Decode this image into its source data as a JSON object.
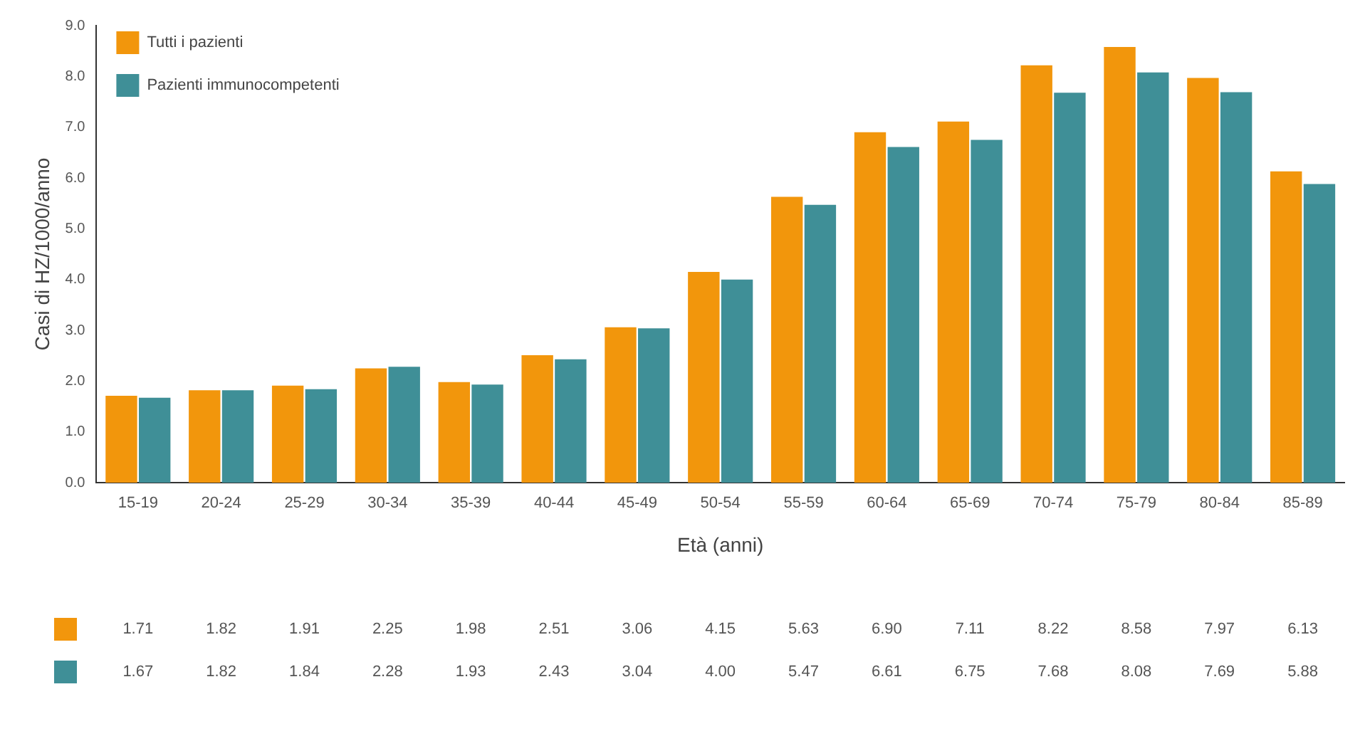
{
  "chart_data": {
    "type": "bar",
    "xlabel": "Età (anni)",
    "ylabel": "Casi di HZ/1000/anno",
    "categories": [
      "15-19",
      "20-24",
      "25-29",
      "30-34",
      "35-39",
      "40-44",
      "45-49",
      "50-54",
      "55-59",
      "60-64",
      "65-69",
      "70-74",
      "75-79",
      "80-84",
      "85-89"
    ],
    "series": [
      {
        "name": "Tutti i pazienti",
        "color": "#f2960c",
        "values": [
          1.71,
          1.82,
          1.91,
          2.25,
          1.98,
          2.51,
          3.06,
          4.15,
          5.63,
          6.9,
          7.11,
          8.22,
          8.58,
          7.97,
          6.13
        ],
        "value_labels": [
          "1.71",
          "1.82",
          "1.91",
          "2.25",
          "1.98",
          "2.51",
          "3.06",
          "4.15",
          "5.63",
          "6.90",
          "7.11",
          "8.22",
          "8.58",
          "7.97",
          "6.13"
        ]
      },
      {
        "name": "Pazienti immunocompetenti",
        "color": "#3f8f97",
        "values": [
          1.67,
          1.82,
          1.84,
          2.28,
          1.93,
          2.43,
          3.04,
          4.0,
          5.47,
          6.61,
          6.75,
          7.68,
          8.08,
          7.69,
          5.88
        ],
        "value_labels": [
          "1.67",
          "1.82",
          "1.84",
          "2.28",
          "1.93",
          "2.43",
          "3.04",
          "4.00",
          "5.47",
          "6.61",
          "6.75",
          "7.68",
          "8.08",
          "7.69",
          "5.88"
        ]
      }
    ],
    "ylim": [
      0,
      9
    ],
    "yticks": [
      {
        "value": 0,
        "label": "0.0"
      },
      {
        "value": 1,
        "label": "1.0"
      },
      {
        "value": 2,
        "label": "2.0"
      },
      {
        "value": 3,
        "label": "3.0"
      },
      {
        "value": 4,
        "label": "4.0"
      },
      {
        "value": 5,
        "label": "5.0"
      },
      {
        "value": 6,
        "label": "6.0"
      },
      {
        "value": 7,
        "label": "7.0"
      },
      {
        "value": 8,
        "label": "8.0"
      },
      {
        "value": 9,
        "label": "9.0"
      }
    ],
    "grid": false,
    "legend": "top left"
  }
}
